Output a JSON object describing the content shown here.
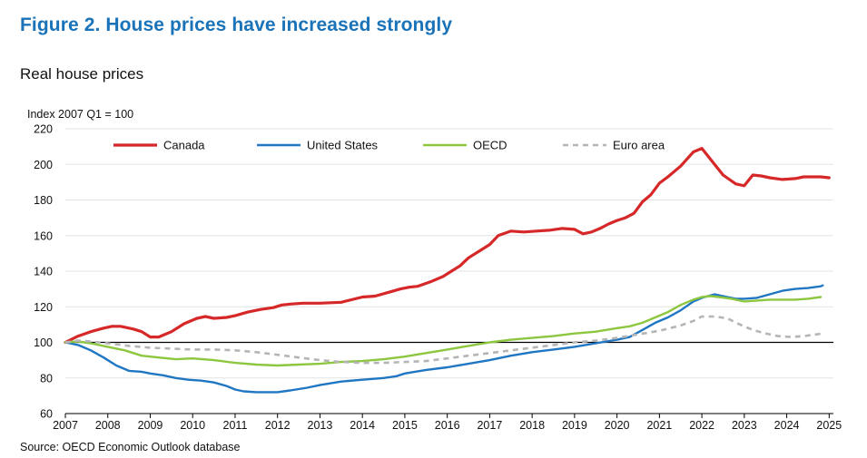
{
  "figure_title": "Figure 2. House prices have increased strongly",
  "subtitle": "Real house prices",
  "source": "Source: OECD Economic Outlook database",
  "chart_data": {
    "type": "line",
    "title": "Real house prices",
    "ylabel": "Index 2007 Q1 = 100",
    "xlabel": "",
    "ylim": [
      60,
      220
    ],
    "yticks": [
      60,
      80,
      100,
      120,
      140,
      160,
      180,
      200,
      220
    ],
    "xlim": [
      2007,
      2025.1
    ],
    "xticks": [
      2007,
      2008,
      2009,
      2010,
      2011,
      2012,
      2013,
      2014,
      2015,
      2016,
      2017,
      2018,
      2019,
      2020,
      2021,
      2022,
      2023,
      2024,
      2025
    ],
    "reference_line": 100,
    "grid": "horizontal",
    "legend_position": "top",
    "series": [
      {
        "name": "Canada",
        "color": "#d62828",
        "style": "solid",
        "x": [
          2007,
          2007.3,
          2007.6,
          2007.9,
          2008.1,
          2008.3,
          2008.6,
          2008.8,
          2009.0,
          2009.2,
          2009.5,
          2009.8,
          2010.1,
          2010.3,
          2010.5,
          2010.8,
          2011.0,
          2011.3,
          2011.6,
          2011.9,
          2012.1,
          2012.3,
          2012.6,
          2013.0,
          2013.5,
          2014.0,
          2014.3,
          2014.6,
          2014.9,
          2015.1,
          2015.3,
          2015.6,
          2015.9,
          2016.1,
          2016.3,
          2016.5,
          2016.8,
          2017.0,
          2017.2,
          2017.5,
          2017.8,
          2018.1,
          2018.4,
          2018.7,
          2019.0,
          2019.2,
          2019.4,
          2019.6,
          2019.8,
          2020.0,
          2020.2,
          2020.4,
          2020.6,
          2020.8,
          2021.0,
          2021.2,
          2021.5,
          2021.8,
          2022.0,
          2022.3,
          2022.5,
          2022.8,
          2023.0,
          2023.2,
          2023.4,
          2023.6,
          2023.9,
          2024.2,
          2024.4,
          2024.6,
          2024.8,
          2025.0
        ],
        "values": [
          100,
          103.5,
          106,
          108,
          109,
          109,
          107.5,
          106,
          103,
          103,
          106,
          110.5,
          113.5,
          114.5,
          113.5,
          114,
          115,
          117,
          118.5,
          119.5,
          121,
          121.5,
          122,
          122,
          122.5,
          125.5,
          126,
          128,
          130,
          131,
          131.5,
          134,
          137,
          140,
          143,
          147.5,
          152,
          155,
          160,
          162.5,
          162,
          162.5,
          163,
          164,
          163.5,
          161,
          162,
          164,
          166.5,
          168.5,
          170,
          172.5,
          179,
          183,
          189.5,
          193,
          199,
          207,
          209,
          200,
          194,
          189,
          188,
          194,
          193.5,
          192.5,
          191.5,
          192,
          193,
          193,
          193,
          192.5
        ]
      },
      {
        "name": "United States",
        "color": "#1f77c3",
        "style": "solid",
        "x": [
          2007,
          2007.3,
          2007.6,
          2007.9,
          2008.2,
          2008.5,
          2008.8,
          2009.0,
          2009.3,
          2009.6,
          2009.9,
          2010.2,
          2010.5,
          2010.8,
          2011.0,
          2011.2,
          2011.5,
          2011.8,
          2012.0,
          2012.3,
          2012.7,
          2013.0,
          2013.5,
          2014.0,
          2014.5,
          2014.8,
          2015.0,
          2015.5,
          2016.0,
          2016.5,
          2017.0,
          2017.5,
          2018.0,
          2018.5,
          2019.0,
          2019.5,
          2020.0,
          2020.3,
          2020.6,
          2020.9,
          2021.2,
          2021.5,
          2021.8,
          2022.0,
          2022.3,
          2022.6,
          2022.8,
          2023.0,
          2023.3,
          2023.6,
          2023.9,
          2024.2,
          2024.5,
          2024.8,
          2024.85
        ],
        "values": [
          100,
          98.5,
          95.5,
          91.5,
          87,
          84,
          83.5,
          82.5,
          81.5,
          80,
          79,
          78.5,
          77.5,
          75.5,
          73.5,
          72.5,
          72,
          72,
          72,
          73,
          74.5,
          76,
          78,
          79,
          80,
          81,
          82.5,
          84.5,
          86,
          88,
          90,
          92.5,
          94.5,
          96,
          97.5,
          99.5,
          101.5,
          103,
          107,
          111,
          114,
          118,
          123,
          125,
          127,
          125.5,
          124.5,
          124.5,
          125,
          127,
          129,
          130,
          130.5,
          131.5,
          132
        ]
      },
      {
        "name": "OECD",
        "color": "#8dc63f",
        "style": "solid",
        "x": [
          2007,
          2007.3,
          2007.6,
          2008.0,
          2008.4,
          2008.8,
          2009.2,
          2009.6,
          2010.0,
          2010.5,
          2011.0,
          2011.5,
          2012.0,
          2012.5,
          2013.0,
          2013.5,
          2014.0,
          2014.5,
          2015.0,
          2015.5,
          2016.0,
          2016.5,
          2017.0,
          2017.5,
          2018.0,
          2018.5,
          2019.0,
          2019.5,
          2020.0,
          2020.3,
          2020.6,
          2020.9,
          2021.2,
          2021.5,
          2021.8,
          2022.0,
          2022.2,
          2022.4,
          2022.7,
          2023.0,
          2023.3,
          2023.6,
          2023.9,
          2024.2,
          2024.5,
          2024.8
        ],
        "values": [
          100,
          100.5,
          99.5,
          97.5,
          95.5,
          92.5,
          91.5,
          90.5,
          91,
          90,
          88.5,
          87.5,
          87,
          87.5,
          88,
          89,
          89.5,
          90.5,
          92,
          94,
          96,
          98,
          100,
          101.5,
          102.5,
          103.5,
          105,
          106,
          108,
          109,
          111,
          114,
          117,
          121,
          124,
          125.5,
          126,
          125.5,
          124.5,
          123,
          123.5,
          124,
          124,
          124,
          124.5,
          125.5
        ]
      },
      {
        "name": "Euro area",
        "color": "#b5b5b5",
        "style": "dashed",
        "x": [
          2007,
          2007.3,
          2007.6,
          2008.0,
          2008.5,
          2009.0,
          2009.5,
          2010.0,
          2010.5,
          2011.0,
          2011.5,
          2012.0,
          2012.5,
          2013.0,
          2013.5,
          2014.0,
          2014.5,
          2015.0,
          2015.5,
          2016.0,
          2016.5,
          2017.0,
          2017.5,
          2018.0,
          2018.5,
          2019.0,
          2019.5,
          2020.0,
          2020.5,
          2021.0,
          2021.5,
          2021.8,
          2022.0,
          2022.3,
          2022.6,
          2022.9,
          2023.2,
          2023.5,
          2023.8,
          2024.1,
          2024.4,
          2024.7,
          2024.85
        ],
        "values": [
          100,
          101,
          100.5,
          99.5,
          98,
          97,
          96.5,
          96,
          96,
          95.5,
          94.5,
          93,
          91.5,
          90,
          89,
          88.5,
          88.5,
          89,
          89.5,
          91,
          92.5,
          94,
          95.5,
          97,
          98.5,
          100,
          101,
          102.5,
          104.5,
          106.5,
          109.5,
          112,
          114.5,
          114.5,
          113.5,
          110,
          107,
          105,
          103.5,
          103,
          103.5,
          104.5,
          105
        ]
      }
    ]
  }
}
